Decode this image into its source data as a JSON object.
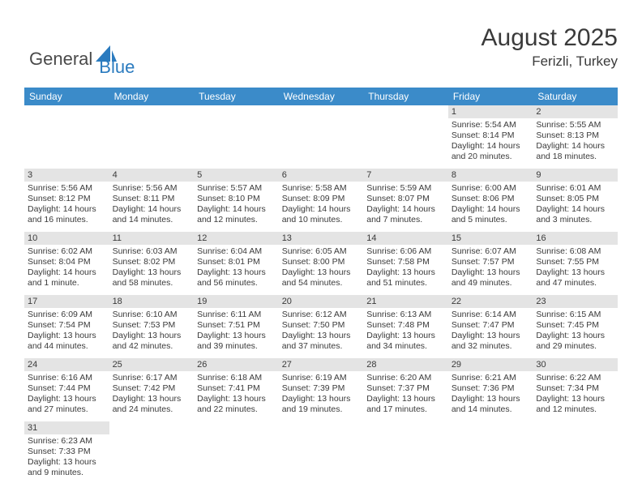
{
  "logo": {
    "dark": "General",
    "blue": "Blue"
  },
  "title": "August 2025",
  "location": "Ferizli, Turkey",
  "dayHeaders": [
    "Sunday",
    "Monday",
    "Tuesday",
    "Wednesday",
    "Thursday",
    "Friday",
    "Saturday"
  ],
  "colors": {
    "headerBg": "#3b8bc9",
    "headerText": "#ffffff",
    "dayBarBg": "#e4e4e4",
    "rowBorder": "#1b5fa0",
    "textColor": "#3a3a3a",
    "logoBlue": "#2b7bbf"
  },
  "weeks": [
    [
      null,
      null,
      null,
      null,
      null,
      {
        "n": "1",
        "sr": "Sunrise: 5:54 AM",
        "ss": "Sunset: 8:14 PM",
        "dl1": "Daylight: 14 hours",
        "dl2": "and 20 minutes."
      },
      {
        "n": "2",
        "sr": "Sunrise: 5:55 AM",
        "ss": "Sunset: 8:13 PM",
        "dl1": "Daylight: 14 hours",
        "dl2": "and 18 minutes."
      }
    ],
    [
      {
        "n": "3",
        "sr": "Sunrise: 5:56 AM",
        "ss": "Sunset: 8:12 PM",
        "dl1": "Daylight: 14 hours",
        "dl2": "and 16 minutes."
      },
      {
        "n": "4",
        "sr": "Sunrise: 5:56 AM",
        "ss": "Sunset: 8:11 PM",
        "dl1": "Daylight: 14 hours",
        "dl2": "and 14 minutes."
      },
      {
        "n": "5",
        "sr": "Sunrise: 5:57 AM",
        "ss": "Sunset: 8:10 PM",
        "dl1": "Daylight: 14 hours",
        "dl2": "and 12 minutes."
      },
      {
        "n": "6",
        "sr": "Sunrise: 5:58 AM",
        "ss": "Sunset: 8:09 PM",
        "dl1": "Daylight: 14 hours",
        "dl2": "and 10 minutes."
      },
      {
        "n": "7",
        "sr": "Sunrise: 5:59 AM",
        "ss": "Sunset: 8:07 PM",
        "dl1": "Daylight: 14 hours",
        "dl2": "and 7 minutes."
      },
      {
        "n": "8",
        "sr": "Sunrise: 6:00 AM",
        "ss": "Sunset: 8:06 PM",
        "dl1": "Daylight: 14 hours",
        "dl2": "and 5 minutes."
      },
      {
        "n": "9",
        "sr": "Sunrise: 6:01 AM",
        "ss": "Sunset: 8:05 PM",
        "dl1": "Daylight: 14 hours",
        "dl2": "and 3 minutes."
      }
    ],
    [
      {
        "n": "10",
        "sr": "Sunrise: 6:02 AM",
        "ss": "Sunset: 8:04 PM",
        "dl1": "Daylight: 14 hours",
        "dl2": "and 1 minute."
      },
      {
        "n": "11",
        "sr": "Sunrise: 6:03 AM",
        "ss": "Sunset: 8:02 PM",
        "dl1": "Daylight: 13 hours",
        "dl2": "and 58 minutes."
      },
      {
        "n": "12",
        "sr": "Sunrise: 6:04 AM",
        "ss": "Sunset: 8:01 PM",
        "dl1": "Daylight: 13 hours",
        "dl2": "and 56 minutes."
      },
      {
        "n": "13",
        "sr": "Sunrise: 6:05 AM",
        "ss": "Sunset: 8:00 PM",
        "dl1": "Daylight: 13 hours",
        "dl2": "and 54 minutes."
      },
      {
        "n": "14",
        "sr": "Sunrise: 6:06 AM",
        "ss": "Sunset: 7:58 PM",
        "dl1": "Daylight: 13 hours",
        "dl2": "and 51 minutes."
      },
      {
        "n": "15",
        "sr": "Sunrise: 6:07 AM",
        "ss": "Sunset: 7:57 PM",
        "dl1": "Daylight: 13 hours",
        "dl2": "and 49 minutes."
      },
      {
        "n": "16",
        "sr": "Sunrise: 6:08 AM",
        "ss": "Sunset: 7:55 PM",
        "dl1": "Daylight: 13 hours",
        "dl2": "and 47 minutes."
      }
    ],
    [
      {
        "n": "17",
        "sr": "Sunrise: 6:09 AM",
        "ss": "Sunset: 7:54 PM",
        "dl1": "Daylight: 13 hours",
        "dl2": "and 44 minutes."
      },
      {
        "n": "18",
        "sr": "Sunrise: 6:10 AM",
        "ss": "Sunset: 7:53 PM",
        "dl1": "Daylight: 13 hours",
        "dl2": "and 42 minutes."
      },
      {
        "n": "19",
        "sr": "Sunrise: 6:11 AM",
        "ss": "Sunset: 7:51 PM",
        "dl1": "Daylight: 13 hours",
        "dl2": "and 39 minutes."
      },
      {
        "n": "20",
        "sr": "Sunrise: 6:12 AM",
        "ss": "Sunset: 7:50 PM",
        "dl1": "Daylight: 13 hours",
        "dl2": "and 37 minutes."
      },
      {
        "n": "21",
        "sr": "Sunrise: 6:13 AM",
        "ss": "Sunset: 7:48 PM",
        "dl1": "Daylight: 13 hours",
        "dl2": "and 34 minutes."
      },
      {
        "n": "22",
        "sr": "Sunrise: 6:14 AM",
        "ss": "Sunset: 7:47 PM",
        "dl1": "Daylight: 13 hours",
        "dl2": "and 32 minutes."
      },
      {
        "n": "23",
        "sr": "Sunrise: 6:15 AM",
        "ss": "Sunset: 7:45 PM",
        "dl1": "Daylight: 13 hours",
        "dl2": "and 29 minutes."
      }
    ],
    [
      {
        "n": "24",
        "sr": "Sunrise: 6:16 AM",
        "ss": "Sunset: 7:44 PM",
        "dl1": "Daylight: 13 hours",
        "dl2": "and 27 minutes."
      },
      {
        "n": "25",
        "sr": "Sunrise: 6:17 AM",
        "ss": "Sunset: 7:42 PM",
        "dl1": "Daylight: 13 hours",
        "dl2": "and 24 minutes."
      },
      {
        "n": "26",
        "sr": "Sunrise: 6:18 AM",
        "ss": "Sunset: 7:41 PM",
        "dl1": "Daylight: 13 hours",
        "dl2": "and 22 minutes."
      },
      {
        "n": "27",
        "sr": "Sunrise: 6:19 AM",
        "ss": "Sunset: 7:39 PM",
        "dl1": "Daylight: 13 hours",
        "dl2": "and 19 minutes."
      },
      {
        "n": "28",
        "sr": "Sunrise: 6:20 AM",
        "ss": "Sunset: 7:37 PM",
        "dl1": "Daylight: 13 hours",
        "dl2": "and 17 minutes."
      },
      {
        "n": "29",
        "sr": "Sunrise: 6:21 AM",
        "ss": "Sunset: 7:36 PM",
        "dl1": "Daylight: 13 hours",
        "dl2": "and 14 minutes."
      },
      {
        "n": "30",
        "sr": "Sunrise: 6:22 AM",
        "ss": "Sunset: 7:34 PM",
        "dl1": "Daylight: 13 hours",
        "dl2": "and 12 minutes."
      }
    ],
    [
      {
        "n": "31",
        "sr": "Sunrise: 6:23 AM",
        "ss": "Sunset: 7:33 PM",
        "dl1": "Daylight: 13 hours",
        "dl2": "and 9 minutes."
      },
      null,
      null,
      null,
      null,
      null,
      null
    ]
  ]
}
